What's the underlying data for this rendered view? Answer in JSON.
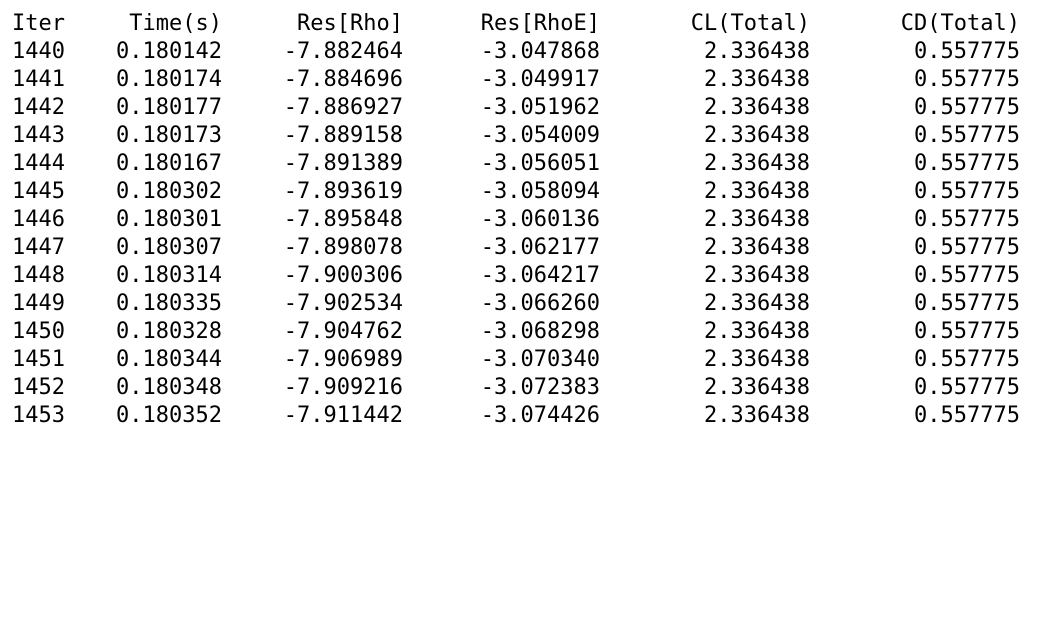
{
  "output": {
    "headers": [
      "Iter",
      "Time(s)",
      "Res[Rho]",
      "Res[RhoE]",
      "CL(Total)",
      "CD(Total)"
    ],
    "rows": [
      [
        "1440",
        "0.180142",
        "-7.882464",
        "-3.047868",
        "2.336438",
        "0.557775"
      ],
      [
        "1441",
        "0.180174",
        "-7.884696",
        "-3.049917",
        "2.336438",
        "0.557775"
      ],
      [
        "1442",
        "0.180177",
        "-7.886927",
        "-3.051962",
        "2.336438",
        "0.557775"
      ],
      [
        "1443",
        "0.180173",
        "-7.889158",
        "-3.054009",
        "2.336438",
        "0.557775"
      ],
      [
        "1444",
        "0.180167",
        "-7.891389",
        "-3.056051",
        "2.336438",
        "0.557775"
      ],
      [
        "1445",
        "0.180302",
        "-7.893619",
        "-3.058094",
        "2.336438",
        "0.557775"
      ],
      [
        "1446",
        "0.180301",
        "-7.895848",
        "-3.060136",
        "2.336438",
        "0.557775"
      ],
      [
        "1447",
        "0.180307",
        "-7.898078",
        "-3.062177",
        "2.336438",
        "0.557775"
      ],
      [
        "1448",
        "0.180314",
        "-7.900306",
        "-3.064217",
        "2.336438",
        "0.557775"
      ],
      [
        "1449",
        "0.180335",
        "-7.902534",
        "-3.066260",
        "2.336438",
        "0.557775"
      ],
      [
        "1450",
        "0.180328",
        "-7.904762",
        "-3.068298",
        "2.336438",
        "0.557775"
      ],
      [
        "1451",
        "0.180344",
        "-7.906989",
        "-3.070340",
        "2.336438",
        "0.557775"
      ],
      [
        "1452",
        "0.180348",
        "-7.909216",
        "-3.072383",
        "2.336438",
        "0.557775"
      ],
      [
        "1453",
        "0.180352",
        "-7.911442",
        "-3.074426",
        "2.336438",
        "0.557775"
      ]
    ]
  },
  "colors": {
    "background": "#ffffff",
    "text": "#000000"
  }
}
